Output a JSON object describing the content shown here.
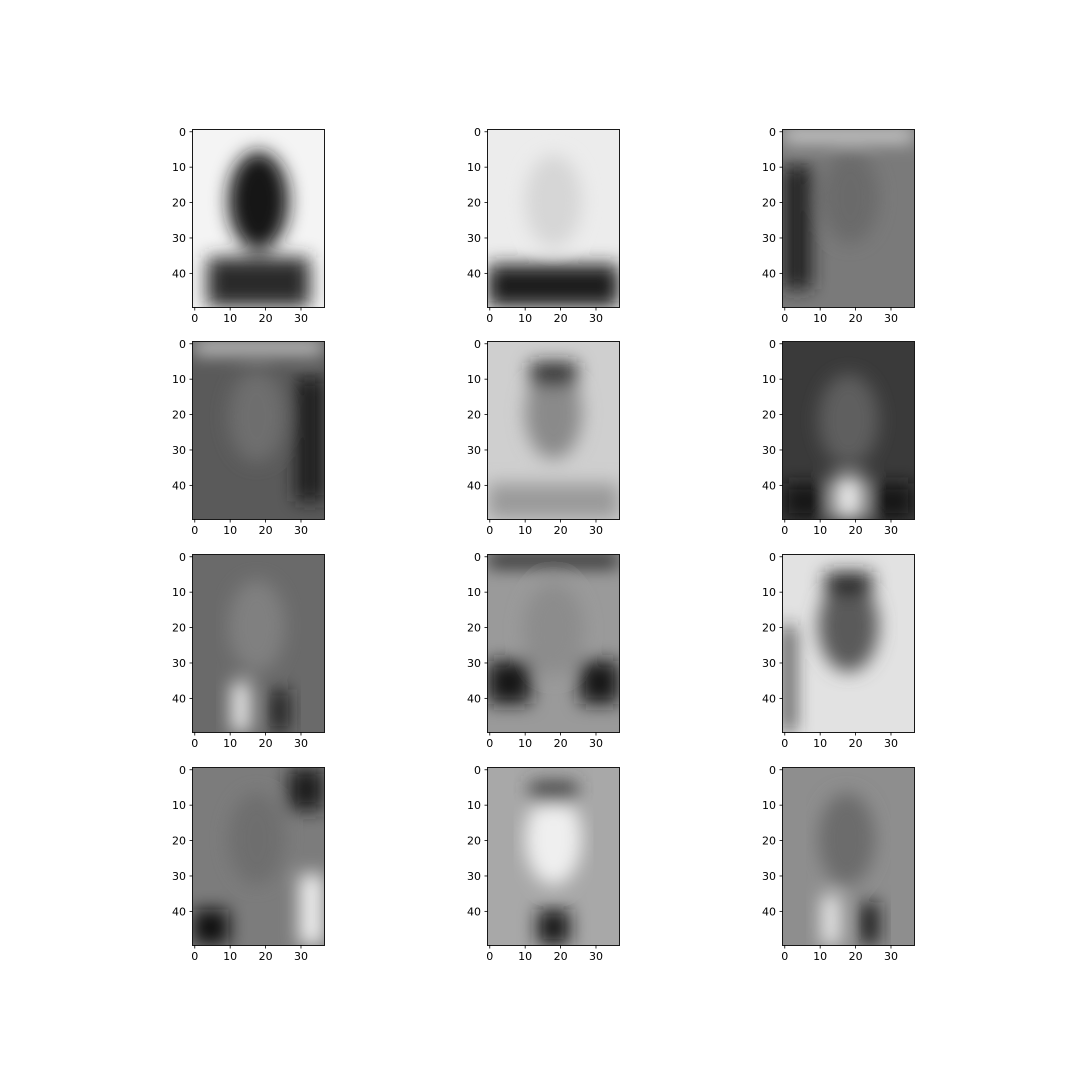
{
  "chart_data": {
    "type": "heatmap",
    "grid": false,
    "layout": "4x3 grid of image panels",
    "colormap": "gray",
    "panels_desc": "eigenface images, grayscale",
    "x_ticks": [
      "0",
      "10",
      "20",
      "30"
    ],
    "y_ticks": [
      "0",
      "10",
      "20",
      "30",
      "40"
    ],
    "xlim": [
      -0.5,
      36.5
    ],
    "ylim": [
      49.5,
      -0.5
    ],
    "image_shape": {
      "rows": 50,
      "cols": 37
    },
    "panels": [
      {
        "name": "panel-1",
        "bg": "#f4f4f4",
        "features": [
          {
            "k": "head",
            "cx": 18.5,
            "cy": 20,
            "rx": 8.5,
            "ry": 14,
            "c": "#141414"
          },
          {
            "k": "body",
            "x0": 4,
            "x1": 33,
            "y0": 36,
            "y1": 50,
            "c": "#2c2c2c"
          }
        ]
      },
      {
        "name": "panel-2",
        "bg": "#ececec",
        "features": [
          {
            "k": "head",
            "cx": 18.5,
            "cy": 20,
            "rx": 8,
            "ry": 13,
            "c": "#d6d6d6"
          },
          {
            "k": "body",
            "x0": 0,
            "x1": 37,
            "y0": 38,
            "y1": 50,
            "c": "#1c1c1c"
          }
        ]
      },
      {
        "name": "panel-3",
        "bg": "#7a7a7a",
        "features": [
          {
            "k": "head",
            "cx": 19,
            "cy": 19,
            "rx": 8,
            "ry": 13,
            "c": "#6a6a6a"
          },
          {
            "k": "strip",
            "x0": 0,
            "x1": 37,
            "y0": 0,
            "y1": 3,
            "c": "#f0f0f0"
          },
          {
            "k": "body",
            "x0": 0,
            "x1": 8,
            "y0": 10,
            "y1": 45,
            "c": "#222222"
          }
        ]
      },
      {
        "name": "panel-4",
        "bg": "#5a5a5a",
        "features": [
          {
            "k": "strip",
            "x0": 0,
            "x1": 37,
            "y0": 0,
            "y1": 3,
            "c": "#efefef"
          },
          {
            "k": "head",
            "cx": 18,
            "cy": 21,
            "rx": 8,
            "ry": 13,
            "c": "#6e6e6e"
          },
          {
            "k": "body",
            "x0": 29,
            "x1": 37,
            "y0": 10,
            "y1": 45,
            "c": "#1e1e1e"
          }
        ]
      },
      {
        "name": "panel-5",
        "bg": "#cfcfcf",
        "features": [
          {
            "k": "head",
            "cx": 18.5,
            "cy": 20,
            "rx": 8,
            "ry": 13,
            "c": "#8a8a8a"
          },
          {
            "k": "strip",
            "x0": 12,
            "x1": 25,
            "y0": 6,
            "y1": 12,
            "c": "#1a1a1a"
          },
          {
            "k": "body",
            "x0": 0,
            "x1": 37,
            "y0": 40,
            "y1": 50,
            "c": "#9a9a9a"
          }
        ]
      },
      {
        "name": "panel-6",
        "bg": "#3a3a3a",
        "features": [
          {
            "k": "head",
            "cx": 18.5,
            "cy": 22,
            "rx": 8.5,
            "ry": 13,
            "c": "#5e5e5e"
          },
          {
            "k": "body",
            "x0": 14,
            "x1": 23,
            "y0": 38,
            "y1": 50,
            "c": "#e4e4e4"
          },
          {
            "k": "body",
            "x0": 0,
            "x1": 12,
            "y0": 40,
            "y1": 50,
            "c": "#181818"
          },
          {
            "k": "body",
            "x0": 25,
            "x1": 37,
            "y0": 40,
            "y1": 50,
            "c": "#181818"
          }
        ]
      },
      {
        "name": "panel-7",
        "bg": "#6a6a6a",
        "features": [
          {
            "k": "head",
            "cx": 18,
            "cy": 20,
            "rx": 8,
            "ry": 13,
            "c": "#808080"
          },
          {
            "k": "body",
            "x0": 11,
            "x1": 16,
            "y0": 36,
            "y1": 50,
            "c": "#f2f2f2"
          },
          {
            "k": "body",
            "x0": 22,
            "x1": 27,
            "y0": 38,
            "y1": 50,
            "c": "#1c1c1c"
          }
        ]
      },
      {
        "name": "panel-8",
        "bg": "#9a9a9a",
        "features": [
          {
            "k": "strip",
            "x0": 0,
            "x1": 37,
            "y0": 0,
            "y1": 3,
            "c": "#101010"
          },
          {
            "k": "head",
            "cx": 18.5,
            "cy": 21,
            "rx": 8.5,
            "ry": 13,
            "c": "#8c8c8c"
          },
          {
            "k": "body",
            "x0": 0,
            "x1": 12,
            "y0": 30,
            "y1": 42,
            "c": "#161616"
          },
          {
            "k": "body",
            "x0": 26,
            "x1": 37,
            "y0": 30,
            "y1": 42,
            "c": "#161616"
          }
        ]
      },
      {
        "name": "panel-9",
        "bg": "#e2e2e2",
        "features": [
          {
            "k": "head",
            "cx": 18.5,
            "cy": 20,
            "rx": 8.5,
            "ry": 13,
            "c": "#5a5a5a"
          },
          {
            "k": "strip",
            "x0": 12,
            "x1": 25,
            "y0": 5,
            "y1": 11,
            "c": "#1e1e1e"
          },
          {
            "k": "body",
            "x0": 0,
            "x1": 3,
            "y0": 20,
            "y1": 50,
            "c": "#252525"
          }
        ]
      },
      {
        "name": "panel-10",
        "bg": "#7c7c7c",
        "features": [
          {
            "k": "head",
            "cx": 18,
            "cy": 20,
            "rx": 8,
            "ry": 13,
            "c": "#6e6e6e"
          },
          {
            "k": "body",
            "x0": 27,
            "x1": 37,
            "y0": 0,
            "y1": 12,
            "c": "#1c1c1c"
          },
          {
            "k": "body",
            "x0": 0,
            "x1": 10,
            "y0": 40,
            "y1": 50,
            "c": "#101010"
          },
          {
            "k": "body",
            "x0": 30,
            "x1": 37,
            "y0": 30,
            "y1": 50,
            "c": "#f0f0f0"
          }
        ]
      },
      {
        "name": "panel-11",
        "bg": "#a8a8a8",
        "features": [
          {
            "k": "head",
            "cx": 18.5,
            "cy": 20,
            "rx": 8,
            "ry": 13,
            "c": "#efefef"
          },
          {
            "k": "strip",
            "x0": 12,
            "x1": 25,
            "y0": 4,
            "y1": 10,
            "c": "#3a3a3a"
          },
          {
            "k": "body",
            "x0": 14,
            "x1": 23,
            "y0": 40,
            "y1": 50,
            "c": "#161616"
          }
        ]
      },
      {
        "name": "panel-12",
        "bg": "#8e8e8e",
        "features": [
          {
            "k": "head",
            "cx": 18,
            "cy": 20,
            "rx": 8,
            "ry": 13,
            "c": "#6c6c6c"
          },
          {
            "k": "body",
            "x0": 11,
            "x1": 16,
            "y0": 36,
            "y1": 50,
            "c": "#eeeeee"
          },
          {
            "k": "body",
            "x0": 22,
            "x1": 27,
            "y0": 38,
            "y1": 50,
            "c": "#141414"
          }
        ]
      }
    ]
  }
}
